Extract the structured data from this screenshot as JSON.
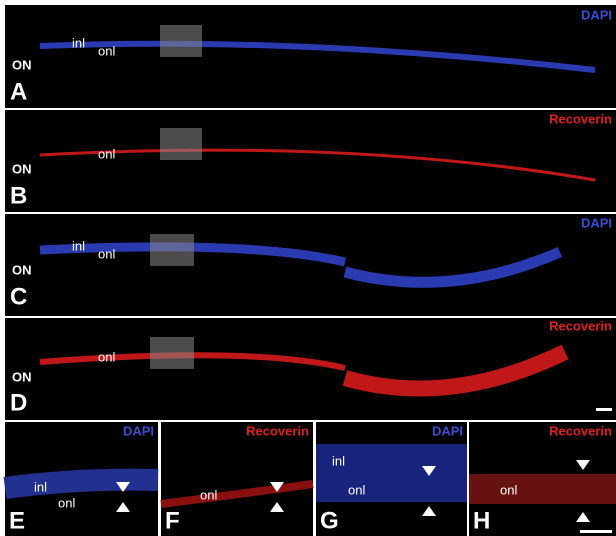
{
  "panels": [
    {
      "letter": "A",
      "stain": "DAPI",
      "on": "ON",
      "inl": "inl",
      "onl": "onl"
    },
    {
      "letter": "B",
      "stain": "Recoverin",
      "on": "ON",
      "onl": "onl"
    },
    {
      "letter": "C",
      "stain": "DAPI",
      "on": "ON",
      "inl": "inl",
      "onl": "onl"
    },
    {
      "letter": "D",
      "stain": "Recoverin",
      "on": "ON",
      "onl": "onl"
    }
  ],
  "detail_panels": [
    {
      "letter": "E",
      "stain": "DAPI",
      "inl": "inl",
      "onl": "onl"
    },
    {
      "letter": "F",
      "stain": "Recoverin",
      "onl": "onl"
    },
    {
      "letter": "G",
      "stain": "DAPI",
      "inl": "inl",
      "onl": "onl"
    },
    {
      "letter": "H",
      "stain": "Recoverin",
      "onl": "onl"
    }
  ]
}
